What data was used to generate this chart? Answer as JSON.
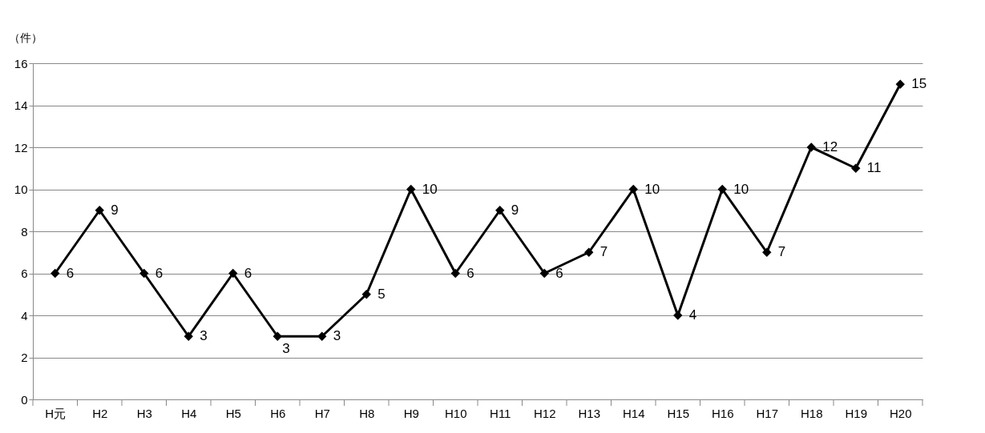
{
  "chart_data": {
    "type": "line",
    "ylabel": "（件）",
    "categories": [
      "H元",
      "H2",
      "H3",
      "H4",
      "H5",
      "H6",
      "H7",
      "H8",
      "H9",
      "H10",
      "H11",
      "H12",
      "H13",
      "H14",
      "H15",
      "H16",
      "H17",
      "H18",
      "H19",
      "H20"
    ],
    "values": [
      6,
      9,
      6,
      3,
      6,
      3,
      3,
      5,
      10,
      6,
      9,
      6,
      7,
      10,
      4,
      10,
      7,
      12,
      11,
      15
    ],
    "color": "#000000",
    "marker": "diamond",
    "line_style": "solid",
    "ylim": [
      0,
      16
    ],
    "yticks": [
      0,
      2,
      4,
      6,
      8,
      10,
      12,
      14,
      16
    ],
    "grid": "y",
    "data_labels": true
  }
}
